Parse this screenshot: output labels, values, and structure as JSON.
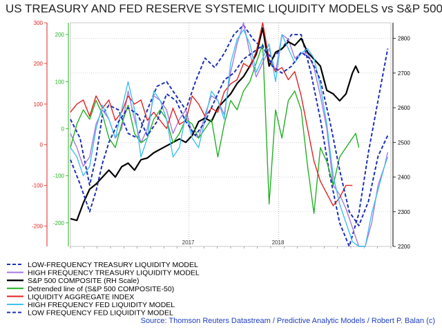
{
  "chart_data": {
    "type": "line",
    "title": "US TREASURY AND FED RESERVE SYSTEMIC LIQUIDITY MODELS vs S&P 500",
    "source": "Source: Thomson Reuters Datastream / Predictive Analytic Models / Robert P. Balan (c)",
    "x_ticks": [
      "2017",
      "2018"
    ],
    "left_axis": {
      "red": {
        "color": "#e02020",
        "ticks": [
          "300",
          "200",
          "100",
          "0",
          "-100",
          "-200"
        ],
        "ylim": [
          -250,
          300
        ]
      },
      "green": {
        "color": "#22b022",
        "ticks": [
          "200",
          "100",
          "0",
          "-100",
          "-200"
        ],
        "ylim": [
          -250,
          225
        ]
      }
    },
    "right_axis": {
      "color": "#000000",
      "label": "S&P 500",
      "ticks": [
        "2800",
        "2700",
        "2600",
        "2500",
        "2400",
        "2300",
        "2200"
      ],
      "ylim": [
        2200,
        2845
      ]
    },
    "x_range": [
      0,
      100
    ],
    "series": [
      {
        "name": "LOW-FREQUENCY TREASURY LIQUIDITY MODEL",
        "color": "#1a2fb8",
        "dash": "5,3",
        "axis": "green",
        "x": [
          0,
          3,
          6,
          8,
          10,
          12,
          15,
          18,
          21,
          24,
          27,
          30,
          33,
          36,
          39,
          42,
          45,
          48,
          51,
          54,
          57,
          60,
          63,
          66,
          69,
          72,
          75,
          78,
          81,
          84,
          87,
          90,
          93,
          96,
          99
        ],
        "y": [
          20,
          -20,
          -120,
          -60,
          30,
          50,
          40,
          -10,
          -20,
          40,
          90,
          100,
          70,
          40,
          100,
          150,
          130,
          160,
          200,
          220,
          190,
          170,
          150,
          170,
          200,
          200,
          120,
          20,
          -100,
          -200,
          -270,
          -180,
          -50,
          60,
          170
        ]
      },
      {
        "name": "HIGH FREQUENCY TREASURY LIQUIDITY MODEL",
        "color": "#a777e0",
        "dash": "",
        "axis": "green",
        "x": [
          0,
          2,
          4,
          6,
          8,
          10,
          12,
          14,
          16,
          18,
          20,
          22,
          24,
          26,
          28,
          30,
          32,
          34,
          36,
          38,
          40,
          42,
          44,
          46,
          48,
          50,
          52,
          54,
          56,
          58,
          60,
          62,
          64,
          66,
          68,
          70,
          72,
          74,
          76,
          78,
          80,
          82,
          84,
          86,
          88,
          90,
          92,
          94,
          96,
          98,
          99
        ],
        "y": [
          -10,
          -40,
          -80,
          -60,
          10,
          40,
          20,
          -20,
          0,
          80,
          20,
          -30,
          0,
          70,
          60,
          40,
          -10,
          20,
          40,
          -10,
          -20,
          30,
          70,
          60,
          30,
          120,
          180,
          230,
          160,
          110,
          140,
          170,
          120,
          200,
          190,
          150,
          160,
          160,
          130,
          70,
          0,
          -120,
          -140,
          -170,
          -210,
          -290,
          -260,
          -200,
          -120,
          -80,
          -50
        ]
      },
      {
        "name": "S&P 500 COMPOSITE (RH Scale)",
        "color": "#000000",
        "dash": "",
        "axis": "right",
        "x": [
          0,
          2,
          4,
          6,
          8,
          10,
          12,
          14,
          16,
          18,
          20,
          22,
          24,
          26,
          28,
          30,
          32,
          34,
          36,
          38,
          40,
          42,
          44,
          46,
          48,
          50,
          52,
          54,
          56,
          58,
          60,
          62,
          64,
          66,
          68,
          70,
          72,
          74,
          76,
          78,
          80,
          82,
          84,
          86,
          88,
          89,
          90
        ],
        "y": [
          2280,
          2275,
          2325,
          2365,
          2380,
          2400,
          2420,
          2400,
          2430,
          2440,
          2420,
          2450,
          2455,
          2470,
          2480,
          2490,
          2500,
          2510,
          2500,
          2520,
          2560,
          2570,
          2560,
          2600,
          2620,
          2640,
          2670,
          2690,
          2720,
          2755,
          2830,
          2720,
          2760,
          2770,
          2790,
          2780,
          2800,
          2760,
          2740,
          2720,
          2650,
          2640,
          2620,
          2640,
          2700,
          2720,
          2700
        ]
      },
      {
        "name": "Detrended line of (S&P 500 COMPOSITE-50)",
        "color": "#22b022",
        "dash": "",
        "axis": "green",
        "x": [
          0,
          2,
          4,
          6,
          8,
          10,
          12,
          14,
          16,
          18,
          20,
          22,
          24,
          26,
          28,
          30,
          32,
          34,
          36,
          38,
          40,
          42,
          44,
          46,
          48,
          50,
          52,
          54,
          56,
          58,
          60,
          62,
          64,
          66,
          68,
          70,
          72,
          74,
          76,
          78,
          80,
          82,
          84,
          86,
          88,
          89,
          90
        ],
        "y": [
          -40,
          10,
          40,
          20,
          60,
          30,
          -20,
          -40,
          10,
          50,
          -10,
          -30,
          -20,
          20,
          40,
          20,
          -30,
          -10,
          20,
          10,
          -20,
          0,
          20,
          -60,
          10,
          60,
          40,
          80,
          100,
          140,
          180,
          -160,
          40,
          -20,
          60,
          80,
          40,
          -80,
          -180,
          -40,
          -70,
          -120,
          -60,
          -40,
          -20,
          -10,
          -40
        ]
      },
      {
        "name": "LIQUIDITY AGGREGATE INDEX",
        "color": "#e02020",
        "dash": "",
        "axis": "red",
        "x": [
          0,
          2,
          4,
          6,
          8,
          10,
          12,
          14,
          16,
          18,
          20,
          22,
          24,
          26,
          28,
          30,
          32,
          34,
          36,
          38,
          40,
          42,
          44,
          46,
          48,
          50,
          52,
          54,
          56,
          58,
          60,
          62,
          64,
          66,
          68,
          70,
          72,
          74,
          76,
          78,
          80,
          82,
          84,
          86,
          88
        ],
        "y": [
          80,
          100,
          110,
          70,
          120,
          90,
          110,
          60,
          80,
          120,
          100,
          110,
          60,
          80,
          60,
          40,
          90,
          50,
          60,
          120,
          100,
          70,
          90,
          80,
          130,
          150,
          160,
          200,
          190,
          230,
          310,
          210,
          180,
          190,
          160,
          180,
          120,
          40,
          -40,
          -90,
          -120,
          -150,
          -130,
          -100,
          -100
        ]
      },
      {
        "name": "HIGH FREQUENCY FED LIQUIDITY MODEL",
        "color": "#3fc0f0",
        "dash": "",
        "axis": "green",
        "x": [
          0,
          2,
          4,
          6,
          8,
          10,
          12,
          14,
          16,
          18,
          20,
          22,
          24,
          26,
          28,
          30,
          32,
          34,
          36,
          38,
          40,
          42,
          44,
          46,
          48,
          50,
          52,
          54,
          56,
          58,
          60,
          62,
          64,
          66,
          68,
          70,
          72,
          74,
          76,
          78,
          80,
          82,
          84,
          86,
          88,
          90,
          92,
          94,
          96,
          98,
          99
        ],
        "y": [
          -40,
          -60,
          -100,
          -80,
          0,
          50,
          20,
          -20,
          40,
          100,
          40,
          -60,
          -20,
          80,
          60,
          20,
          -60,
          -40,
          30,
          -20,
          -40,
          20,
          80,
          60,
          20,
          140,
          190,
          210,
          180,
          120,
          150,
          180,
          100,
          200,
          170,
          140,
          160,
          170,
          150,
          90,
          10,
          -100,
          -160,
          -200,
          -240,
          -270,
          -250,
          -180,
          -130,
          -80,
          -60
        ]
      },
      {
        "name": "LOW FREQUENCY FED LIQUIDITY MODEL",
        "color": "#1a2fb8",
        "dash": "5,3",
        "axis": "right",
        "x": [
          0,
          3,
          6,
          8,
          10,
          12,
          15,
          18,
          21,
          24,
          27,
          30,
          33,
          36,
          39,
          42,
          45,
          48,
          51,
          54,
          57,
          60,
          63,
          66,
          69,
          72,
          75,
          78,
          81,
          84,
          87,
          90,
          93,
          96,
          99
        ],
        "y": [
          2450,
          2380,
          2300,
          2360,
          2440,
          2500,
          2560,
          2600,
          2580,
          2520,
          2560,
          2640,
          2620,
          2560,
          2520,
          2560,
          2620,
          2680,
          2700,
          2740,
          2760,
          2780,
          2720,
          2700,
          2720,
          2760,
          2740,
          2680,
          2560,
          2420,
          2300,
          2260,
          2330,
          2460,
          2520
        ]
      }
    ]
  },
  "legend": [
    {
      "label": "LOW-FREQUENCY TREASURY LIQUIDITY MODEL",
      "color": "#1a2fb8",
      "dash": true
    },
    {
      "label": "HIGH FREQUENCY TREASURY LIQUIDITY MODEL",
      "color": "#a777e0",
      "dash": false
    },
    {
      "label": "S&P 500 COMPOSITE (RH Scale)",
      "color": "#000000",
      "dash": false
    },
    {
      "label": "Detrended line of (S&P 500 COMPOSITE-50)",
      "color": "#22b022",
      "dash": false
    },
    {
      "label": "LIQUIDITY AGGREGATE INDEX",
      "color": "#e02020",
      "dash": false
    },
    {
      "label": "HIGH FREQUENCY FED LIQUIDITY MODEL",
      "color": "#3fc0f0",
      "dash": false
    },
    {
      "label": "LOW FREQUENCY FED LIQUIDITY MODEL",
      "color": "#1a2fb8",
      "dash": true
    }
  ]
}
